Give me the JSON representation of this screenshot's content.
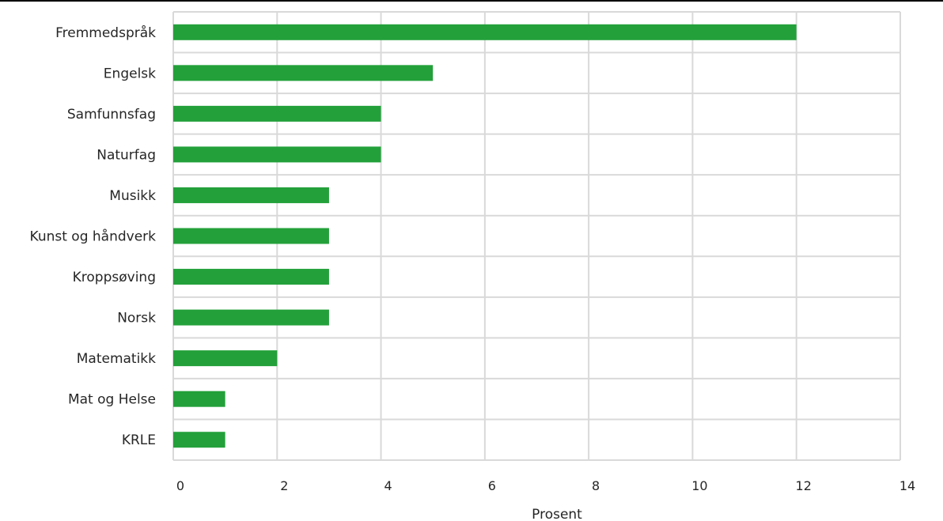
{
  "chart_data": {
    "type": "bar",
    "orientation": "horizontal",
    "title": "",
    "xlabel": "Prosent",
    "ylabel": "",
    "xlim": [
      0,
      14
    ],
    "xticks": [
      "0",
      "2",
      "4",
      "6",
      "8",
      "10",
      "12",
      "14"
    ],
    "grid": true,
    "legend": "none",
    "categories": [
      "Fremmedspråk",
      "Engelsk",
      "Samfunnsfag",
      "Naturfag",
      "Musikk",
      "Kunst og håndverk",
      "Kroppsøving",
      "Norsk",
      "Matematikk",
      "Mat og Helse",
      "KRLE"
    ],
    "values": [
      12,
      5,
      4,
      4,
      3,
      3,
      3,
      3,
      2,
      1,
      1
    ],
    "color": "#23a03a"
  }
}
